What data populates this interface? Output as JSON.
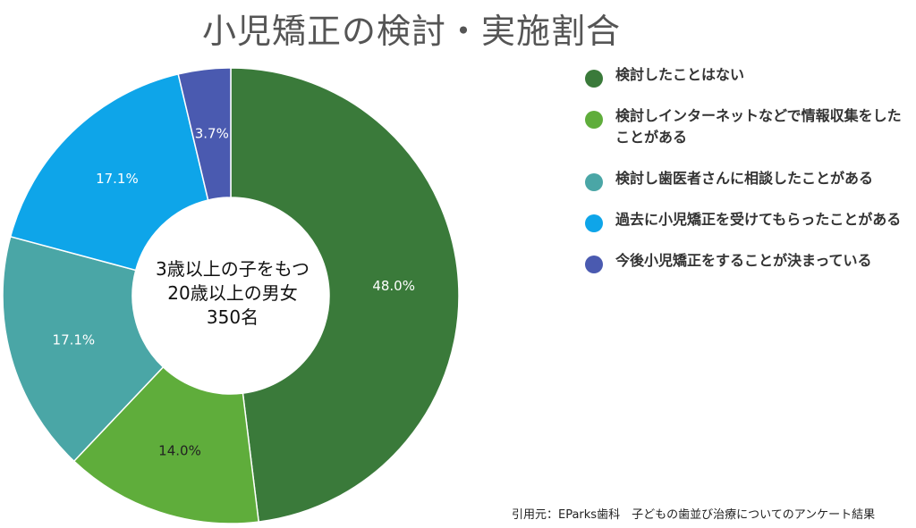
{
  "chart_data": {
    "type": "pie",
    "title": "小児矯正の検討・実施割合",
    "center_label_lines": [
      "3歳以上の子をもつ",
      "20歳以上の男女",
      "350名"
    ],
    "slices": [
      {
        "name": "検討したことはない",
        "value": 48.0,
        "label": "48.0%",
        "color": "#3a7a3a"
      },
      {
        "name": "検討しインターネットなどで情報収集をしたことがある",
        "value": 14.0,
        "label": "14.0%",
        "color": "#5fad3b"
      },
      {
        "name": "検討し歯医者さんに相談したことがある",
        "value": 17.1,
        "label": "17.1%",
        "color": "#4aa6a6"
      },
      {
        "name": "過去に小児矯正を受けてもらったことがある",
        "value": 17.1,
        "label": "17.1%",
        "color": "#0ea5e9"
      },
      {
        "name": "今後小児矯正をすることが決まっている",
        "value": 3.7,
        "label": "3.7%",
        "color": "#4a5ab0"
      }
    ],
    "legend_position": "right",
    "source": "引用元：EParks歯科　子どもの歯並び治療についてのアンケート結果"
  }
}
